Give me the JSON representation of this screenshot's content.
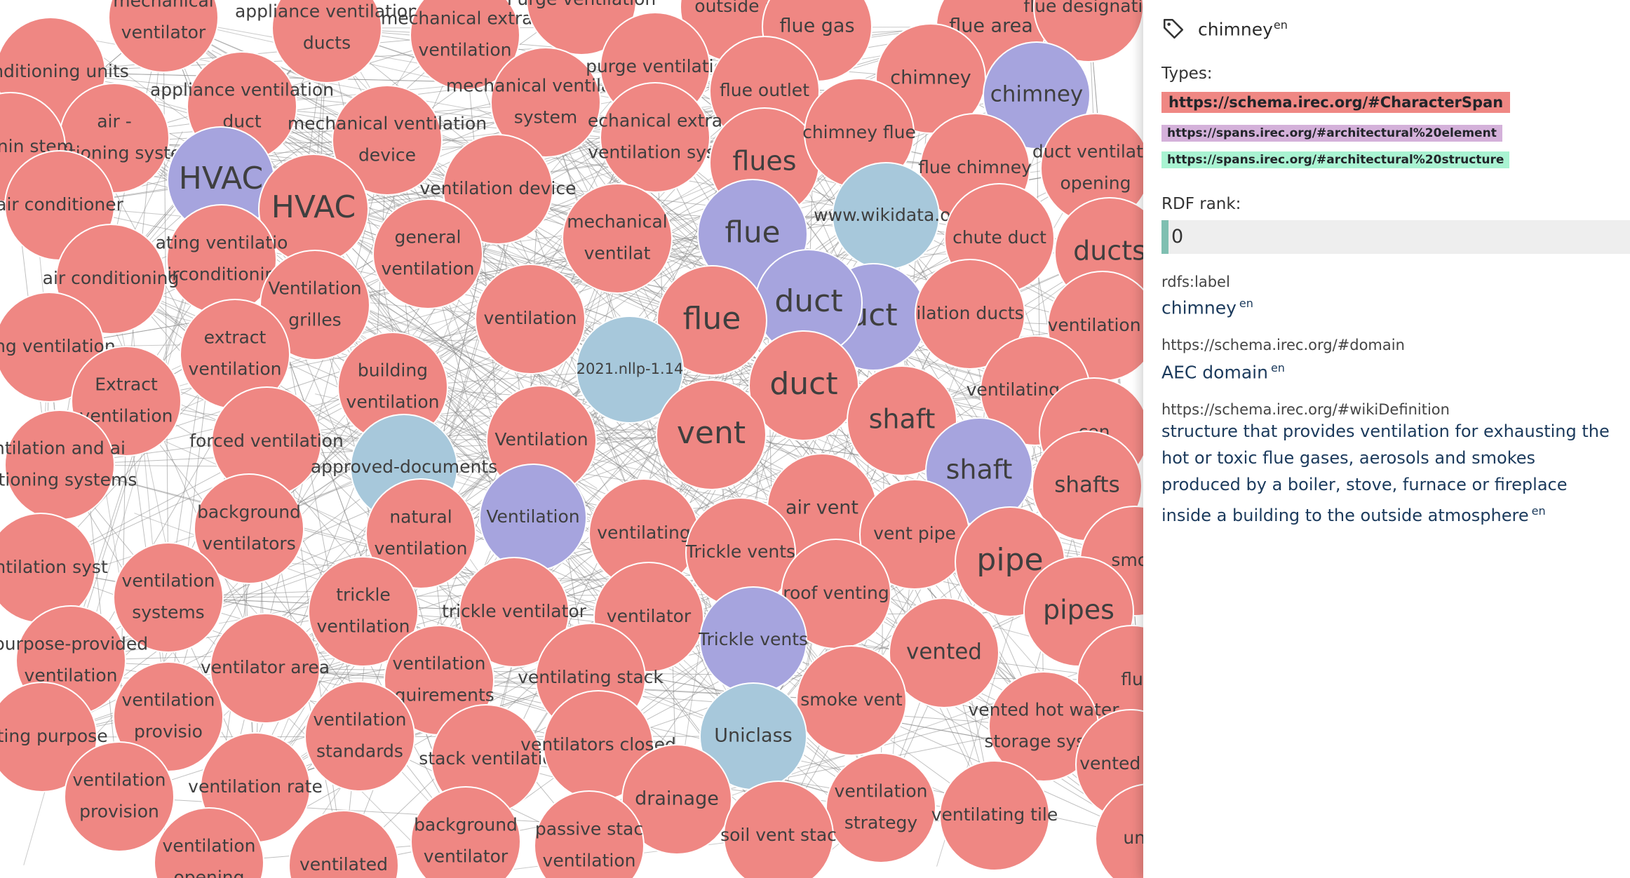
{
  "graph": {
    "colors": {
      "entity": "#ef8783",
      "type": "#a6a4de",
      "source": "#a7c8db",
      "edge": "#8a8a8a"
    },
    "nodes": [
      {
        "label": "mechanical ventilator",
        "kind": "entity"
      },
      {
        "label": "appliance ventilation ducts",
        "kind": "entity"
      },
      {
        "label": "mechanical extract ventilation",
        "kind": "entity"
      },
      {
        "label": "Purge ventilation",
        "kind": "entity"
      },
      {
        "label": "outside a",
        "kind": "entity"
      },
      {
        "label": "flue gas",
        "kind": "entity"
      },
      {
        "label": "flue area",
        "kind": "entity"
      },
      {
        "label": "flue designatio",
        "kind": "entity"
      },
      {
        "label": "conditioning units",
        "kind": "entity"
      },
      {
        "label": "appliance ventilation duct",
        "kind": "entity"
      },
      {
        "label": "mechanical ventilation system",
        "kind": "entity"
      },
      {
        "label": "purge ventilatio",
        "kind": "entity"
      },
      {
        "label": "flue outlet",
        "kind": "entity"
      },
      {
        "label": "chimney",
        "kind": "entity"
      },
      {
        "label": "chimney",
        "kind": "type"
      },
      {
        "label": "air - conditioning systems",
        "kind": "entity"
      },
      {
        "label": "nditionin stem",
        "kind": "entity"
      },
      {
        "label": "mechanical ventilation device",
        "kind": "entity"
      },
      {
        "label": "echanical extra ventilation syst",
        "kind": "entity"
      },
      {
        "label": "flues",
        "kind": "entity"
      },
      {
        "label": "chimney flue",
        "kind": "entity"
      },
      {
        "label": "flue chimney",
        "kind": "entity"
      },
      {
        "label": "duct ventilatio opening",
        "kind": "entity"
      },
      {
        "label": "HVAC",
        "kind": "type"
      },
      {
        "label": "HVAC",
        "kind": "entity"
      },
      {
        "label": "ventilation device",
        "kind": "entity"
      },
      {
        "label": "air conditioner",
        "kind": "entity"
      },
      {
        "label": "www.wikidata.or",
        "kind": "source"
      },
      {
        "label": "flue",
        "kind": "type"
      },
      {
        "label": "chute duct",
        "kind": "entity"
      },
      {
        "label": "ducts",
        "kind": "entity"
      },
      {
        "label": "ating ventilatio airconditioning",
        "kind": "entity"
      },
      {
        "label": "general ventilation",
        "kind": "entity"
      },
      {
        "label": "mechanical ventilat",
        "kind": "entity"
      },
      {
        "label": "air conditioning",
        "kind": "entity"
      },
      {
        "label": "Ventilation grilles",
        "kind": "entity"
      },
      {
        "label": "uct",
        "kind": "type"
      },
      {
        "label": "duct",
        "kind": "type"
      },
      {
        "label": "flue",
        "kind": "entity"
      },
      {
        "label": "ilation ducts",
        "kind": "entity"
      },
      {
        "label": "ventilation d",
        "kind": "entity"
      },
      {
        "label": "ventilation",
        "kind": "entity"
      },
      {
        "label": "ting ventilation",
        "kind": "entity"
      },
      {
        "label": "extract ventilation",
        "kind": "entity"
      },
      {
        "label": "2021.nllp-1.14",
        "kind": "source"
      },
      {
        "label": "duct",
        "kind": "entity"
      },
      {
        "label": "ventilating duct",
        "kind": "entity"
      },
      {
        "label": "building ventilation",
        "kind": "entity"
      },
      {
        "label": "Extract ventilation",
        "kind": "entity"
      },
      {
        "label": "vent",
        "kind": "entity"
      },
      {
        "label": "shaft",
        "kind": "entity"
      },
      {
        "label": "cen",
        "kind": "entity"
      },
      {
        "label": "Ventilation",
        "kind": "entity"
      },
      {
        "label": "forced ventilation",
        "kind": "entity"
      },
      {
        "label": "ntilation and ai ditioning systems",
        "kind": "entity"
      },
      {
        "label": "approved-documents",
        "kind": "source"
      },
      {
        "label": "shaft",
        "kind": "type"
      },
      {
        "label": "shafts",
        "kind": "entity"
      },
      {
        "label": "air vent",
        "kind": "entity"
      },
      {
        "label": "Ventilation",
        "kind": "type"
      },
      {
        "label": "ventilating",
        "kind": "entity"
      },
      {
        "label": "background ventilators",
        "kind": "entity"
      },
      {
        "label": "natural ventilation",
        "kind": "entity"
      },
      {
        "label": "Trickle vents",
        "kind": "entity"
      },
      {
        "label": "vent pipe",
        "kind": "entity"
      },
      {
        "label": "pipe",
        "kind": "entity"
      },
      {
        "label": "smok",
        "kind": "entity"
      },
      {
        "label": "ventilation syst",
        "kind": "entity"
      },
      {
        "label": "ventilation systems",
        "kind": "entity"
      },
      {
        "label": "trickle ventilation",
        "kind": "entity"
      },
      {
        "label": "trickle ventilator",
        "kind": "entity"
      },
      {
        "label": "ventilator",
        "kind": "entity"
      },
      {
        "label": "roof venting",
        "kind": "entity"
      },
      {
        "label": "pipes",
        "kind": "entity"
      },
      {
        "label": "purpose-provided ventilation",
        "kind": "entity"
      },
      {
        "label": "ventilator area",
        "kind": "entity"
      },
      {
        "label": "ventilation equirements",
        "kind": "entity"
      },
      {
        "label": "Trickle vents",
        "kind": "type"
      },
      {
        "label": "vented",
        "kind": "entity"
      },
      {
        "label": "flu",
        "kind": "entity"
      },
      {
        "label": "ventilating stack",
        "kind": "entity"
      },
      {
        "label": "smoke vent",
        "kind": "entity"
      },
      {
        "label": "ventilation provisio",
        "kind": "entity"
      },
      {
        "label": "ilating purpose",
        "kind": "entity"
      },
      {
        "label": "ventilation standards",
        "kind": "entity"
      },
      {
        "label": "vented hot water storage syste",
        "kind": "entity"
      },
      {
        "label": "stack ventilatio",
        "kind": "entity"
      },
      {
        "label": "ventilators closed",
        "kind": "entity"
      },
      {
        "label": "Uniclass",
        "kind": "source"
      },
      {
        "label": "vented sola",
        "kind": "entity"
      },
      {
        "label": "ventilation provision",
        "kind": "entity"
      },
      {
        "label": "ventilation rate",
        "kind": "entity"
      },
      {
        "label": "drainage",
        "kind": "entity"
      },
      {
        "label": "ventilation strategy",
        "kind": "entity"
      },
      {
        "label": "ventilating tile",
        "kind": "entity"
      },
      {
        "label": "unv st",
        "kind": "entity"
      },
      {
        "label": "passive stac ventilation",
        "kind": "entity"
      },
      {
        "label": "soil vent stac",
        "kind": "entity"
      },
      {
        "label": "background ventilator",
        "kind": "entity"
      },
      {
        "label": "ventilation opening",
        "kind": "entity"
      },
      {
        "label": "ventilated",
        "kind": "entity"
      }
    ]
  },
  "panel": {
    "title": "chimney",
    "title_lang": "en",
    "icon": "tag-icon",
    "types_label": "Types:",
    "types": [
      {
        "uri": "https://schema.irec.org/#CharacterSpan",
        "color": "#ef8783"
      },
      {
        "uri": "https://spans.irec.org/#architectural%20element",
        "color": "#d4b1da"
      },
      {
        "uri": "https://spans.irec.org/#architectural%20structure",
        "color": "#a9f3d2"
      }
    ],
    "rank_label": "RDF rank:",
    "rank_value": "0",
    "properties": [
      {
        "key": "rdfs:label",
        "value": "chimney",
        "lang": "en"
      },
      {
        "key": "https://schema.irec.org/#domain",
        "value": "AEC domain",
        "lang": "en"
      },
      {
        "key": "https://schema.irec.org/#wikiDefinition",
        "value": "structure that provides ventilation for exhausting the hot or toxic flue gases, aerosols and smokes produced by a boiler, stove, furnace or fireplace inside a building to the outside atmosphere",
        "lang": "en"
      }
    ]
  }
}
